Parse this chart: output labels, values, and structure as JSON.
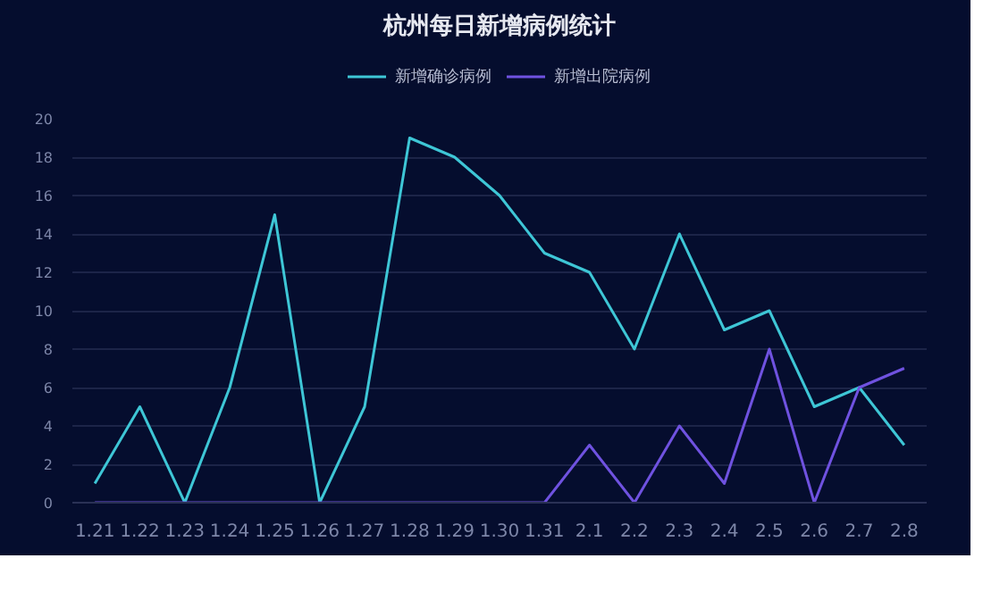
{
  "chart_data": {
    "type": "line",
    "title": "杭州每日新增病例统计",
    "categories": [
      "1.21",
      "1.22",
      "1.23",
      "1.24",
      "1.25",
      "1.26",
      "1.27",
      "1.28",
      "1.29",
      "1.30",
      "1.31",
      "2.1",
      "2.2",
      "2.3",
      "2.4",
      "2.5",
      "2.6",
      "2.7",
      "2.8"
    ],
    "series": [
      {
        "name": "新增确诊病例",
        "color": "#3ec6d6",
        "values": [
          1,
          5,
          0,
          6,
          15,
          0,
          5,
          19,
          18,
          16,
          13,
          12,
          8,
          14,
          9,
          10,
          5,
          6,
          3
        ]
      },
      {
        "name": "新增出院病例",
        "color": "#6f52e0",
        "values": [
          0,
          0,
          0,
          0,
          0,
          0,
          0,
          0,
          0,
          0,
          0,
          3,
          0,
          4,
          1,
          8,
          0,
          6,
          7
        ]
      }
    ],
    "ylim": [
      0,
      20
    ],
    "yticks": [
      0,
      2,
      4,
      6,
      8,
      10,
      12,
      14,
      16,
      18,
      20
    ],
    "grid": "y",
    "legend": "top",
    "marker": "none",
    "line_style": "solid"
  }
}
